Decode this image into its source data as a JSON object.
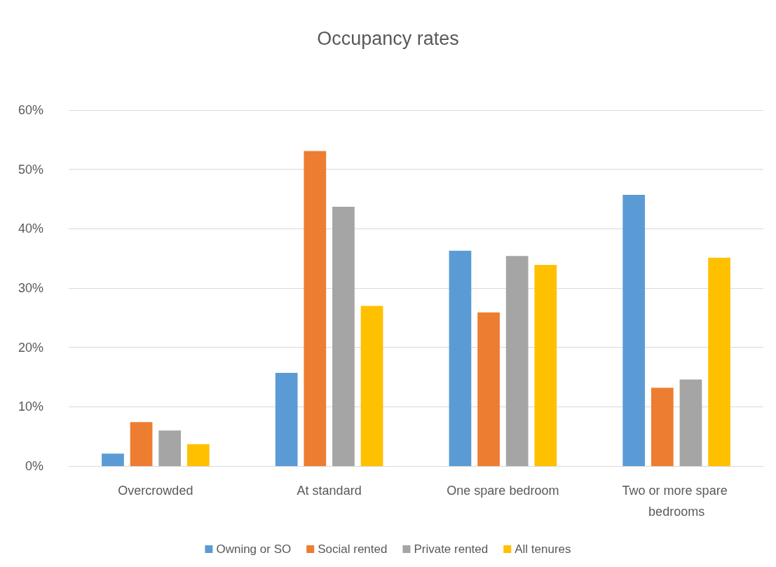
{
  "chart_data": {
    "type": "bar",
    "title": "Occupancy rates",
    "categories": [
      "Overcrowded",
      "At standard",
      "One spare bedroom",
      "Two or more spare bedrooms"
    ],
    "series": [
      {
        "name": "Owning or SO",
        "color": "#5b9bd5",
        "values": [
          2.1,
          15.7,
          36.3,
          45.7
        ]
      },
      {
        "name": "Social rented",
        "color": "#ed7d31",
        "values": [
          7.4,
          53.1,
          25.9,
          13.2
        ]
      },
      {
        "name": "Private rented",
        "color": "#a5a5a5",
        "values": [
          6.0,
          43.7,
          35.4,
          14.6
        ]
      },
      {
        "name": "All tenures",
        "color": "#ffc000",
        "values": [
          3.7,
          27.0,
          33.9,
          35.1
        ]
      }
    ],
    "ylim": [
      0,
      60
    ],
    "yticks": [
      {
        "value": 0,
        "label": "0%"
      },
      {
        "value": 10,
        "label": "10%"
      },
      {
        "value": 20,
        "label": "20%"
      },
      {
        "value": 30,
        "label": "30%"
      },
      {
        "value": 40,
        "label": "40%"
      },
      {
        "value": 50,
        "label": "50%"
      },
      {
        "value": 60,
        "label": "60%"
      }
    ],
    "grid": "y",
    "legend": "bottom"
  }
}
